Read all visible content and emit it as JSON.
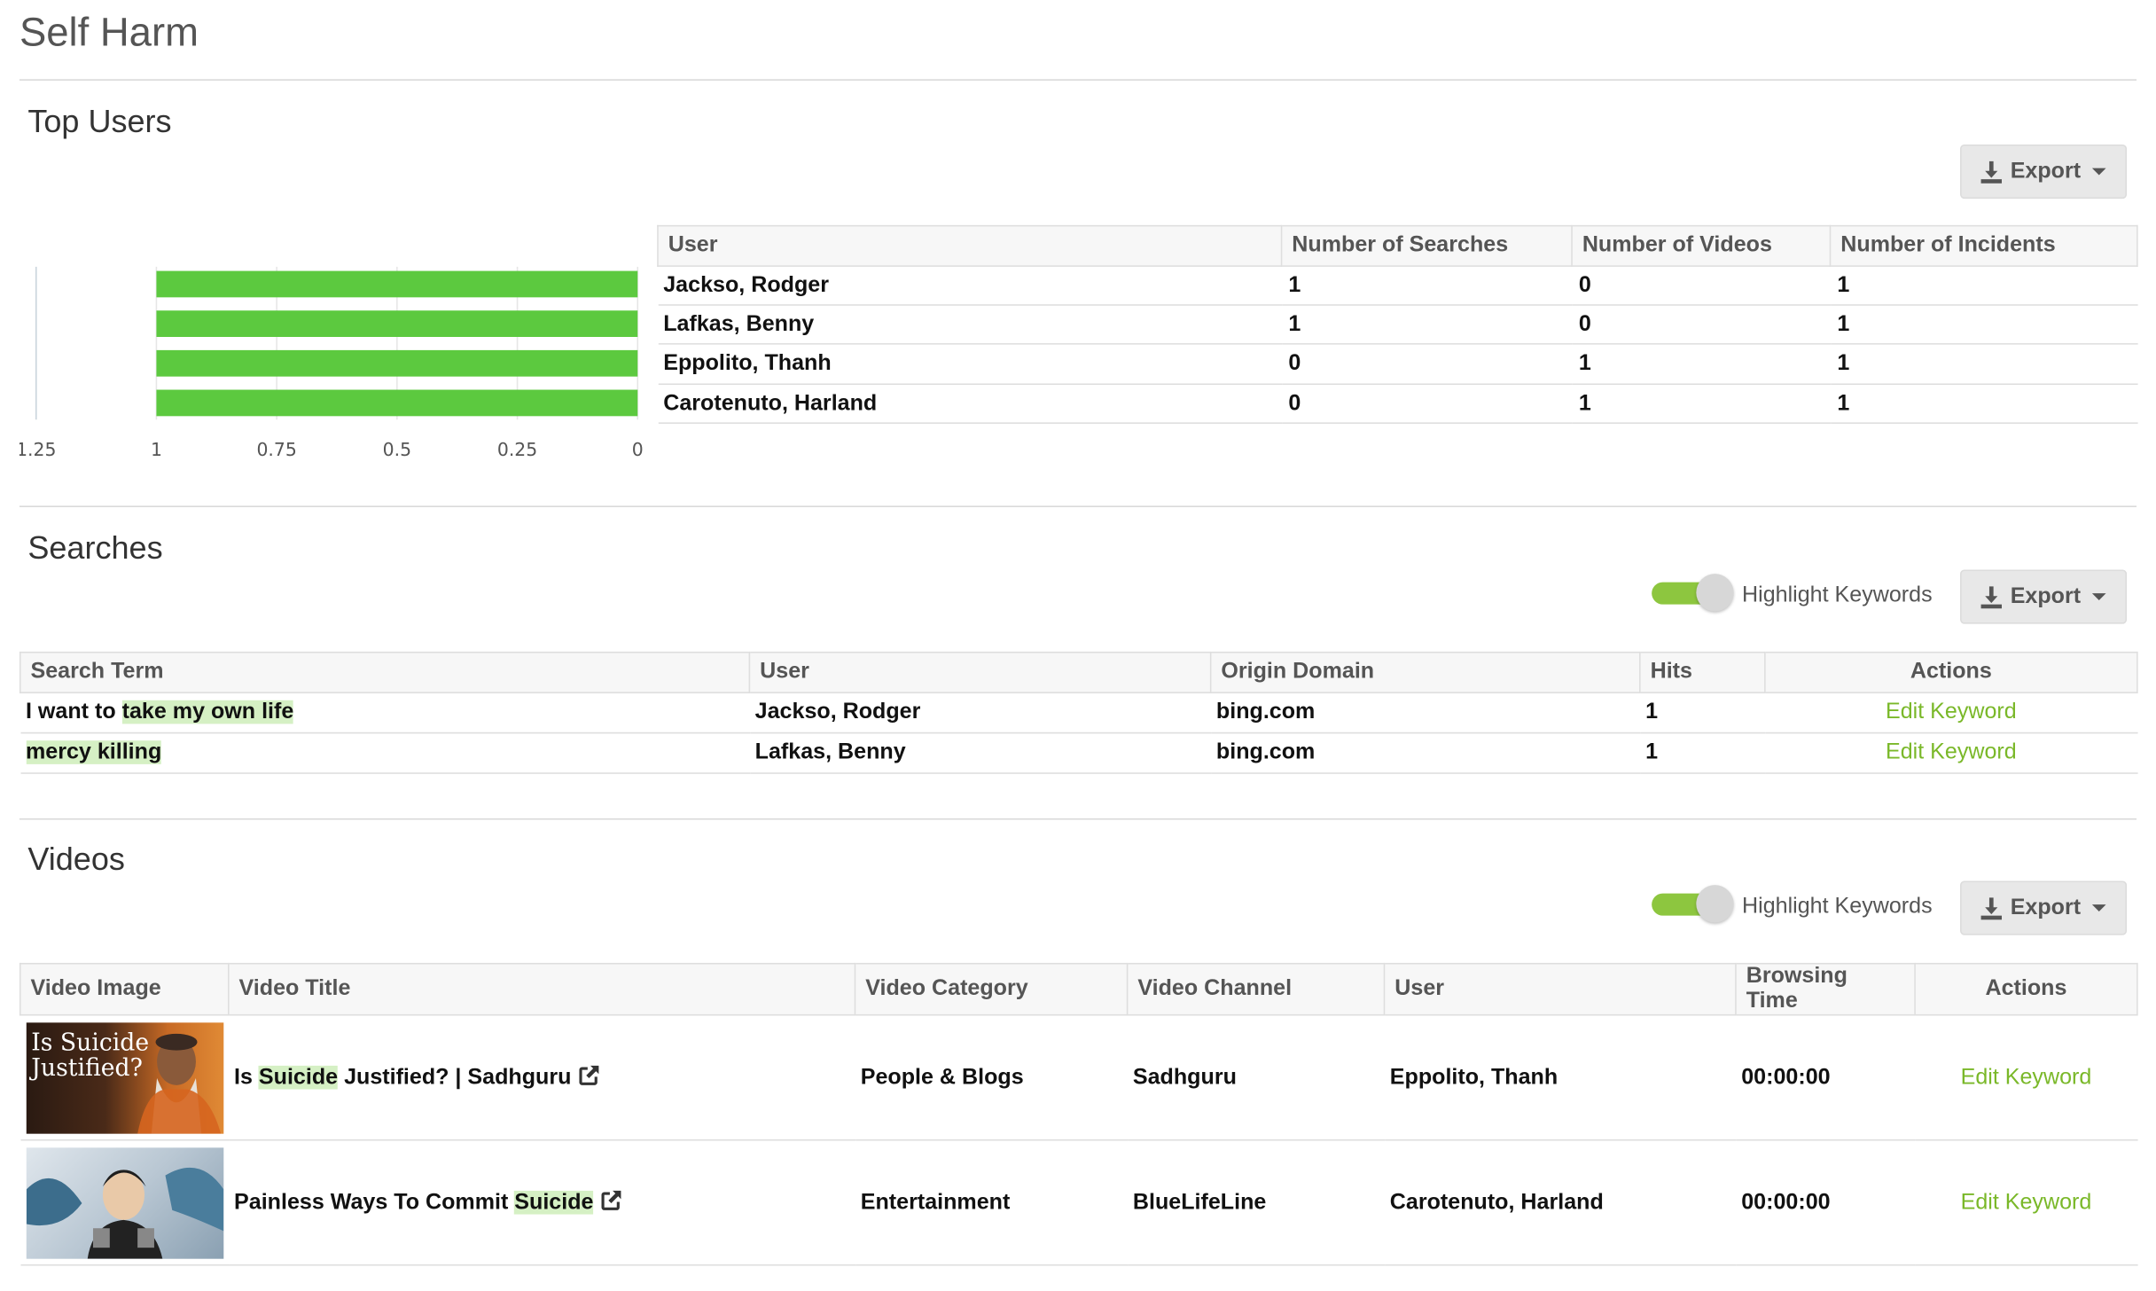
{
  "page": {
    "title": "Self Harm"
  },
  "top_users": {
    "title": "Top Users",
    "export_label": "Export",
    "columns": [
      "User",
      "Number of Searches",
      "Number of Videos",
      "Number of Incidents"
    ],
    "rows": [
      {
        "user": "Jackso, Rodger",
        "searches": "1",
        "videos": "0",
        "incidents": "1"
      },
      {
        "user": "Lafkas, Benny",
        "searches": "1",
        "videos": "0",
        "incidents": "1"
      },
      {
        "user": "Eppolito, Thanh",
        "searches": "0",
        "videos": "1",
        "incidents": "1"
      },
      {
        "user": "Carotenuto, Harland",
        "searches": "0",
        "videos": "1",
        "incidents": "1"
      }
    ]
  },
  "chart_data": {
    "type": "bar",
    "orientation": "horizontal",
    "x_reversed": true,
    "categories": [
      "Jackso, Rodger",
      "Lafkas, Benny",
      "Eppolito, Thanh",
      "Carotenuto, Harland"
    ],
    "values": [
      1,
      1,
      1,
      1
    ],
    "xlim": [
      0,
      1.25
    ],
    "x_ticks": [
      "1.25",
      "1",
      "0.75",
      "0.5",
      "0.25",
      "0"
    ],
    "bar_color": "#5cc93f",
    "grid": true
  },
  "searches": {
    "title": "Searches",
    "highlight_label": "Highlight Keywords",
    "highlight_on": true,
    "export_label": "Export",
    "columns": [
      "Search Term",
      "User",
      "Origin Domain",
      "Hits",
      "Actions"
    ],
    "rows": [
      {
        "term_plain": "I want to ",
        "term_kw": "take my own life",
        "user": "Jackso, Rodger",
        "domain": "bing.com",
        "hits": "1",
        "action": "Edit Keyword"
      },
      {
        "term_plain": "",
        "term_kw": "mercy killing",
        "user": "Lafkas, Benny",
        "domain": "bing.com",
        "hits": "1",
        "action": "Edit Keyword"
      }
    ]
  },
  "videos": {
    "title": "Videos",
    "highlight_label": "Highlight Keywords",
    "highlight_on": true,
    "export_label": "Export",
    "columns": [
      "Video Image",
      "Video Title",
      "Video Category",
      "Video Channel",
      "User",
      "Browsing Time",
      "Actions"
    ],
    "rows": [
      {
        "thumb_text": "Is Suicide Justified?",
        "title_pre": "Is ",
        "title_kw": "Suicide",
        "title_post": " Justified? | Sadhguru",
        "category": "People & Blogs",
        "channel": "Sadhguru",
        "user": "Eppolito, Thanh",
        "time": "00:00:00",
        "action": "Edit Keyword"
      },
      {
        "thumb_text": "",
        "title_pre": "Painless Ways To Commit ",
        "title_kw": "Suicide",
        "title_post": "",
        "category": "Entertainment",
        "channel": "BlueLifeLine",
        "user": "Carotenuto, Harland",
        "time": "00:00:00",
        "action": "Edit Keyword"
      }
    ]
  },
  "colors": {
    "accent_green": "#7ab829",
    "keyword_highlight": "#d5f0c4",
    "toggle_on": "#8dc63f",
    "bar": "#5cc93f"
  }
}
